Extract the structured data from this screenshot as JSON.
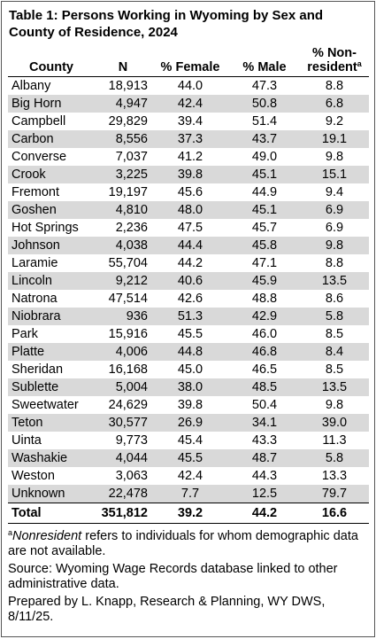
{
  "title": "Table 1: Persons Working in Wyoming by Sex and County of Residence, 2024",
  "table": {
    "header": [
      "County",
      "N",
      "% Female",
      "% Male",
      "% Non-resident"
    ],
    "header_marker": "a",
    "rows": [
      [
        "Albany",
        "18,913",
        "44.0",
        "47.3",
        "8.8"
      ],
      [
        "Big Horn",
        "4,947",
        "42.4",
        "50.8",
        "6.8"
      ],
      [
        "Campbell",
        "29,829",
        "39.4",
        "51.4",
        "9.2"
      ],
      [
        "Carbon",
        "8,556",
        "37.3",
        "43.7",
        "19.1"
      ],
      [
        "Converse",
        "7,037",
        "41.2",
        "49.0",
        "9.8"
      ],
      [
        "Crook",
        "3,225",
        "39.8",
        "45.1",
        "15.1"
      ],
      [
        "Fremont",
        "19,197",
        "45.6",
        "44.9",
        "9.4"
      ],
      [
        "Goshen",
        "4,810",
        "48.0",
        "45.1",
        "6.9"
      ],
      [
        "Hot Springs",
        "2,236",
        "47.5",
        "45.7",
        "6.9"
      ],
      [
        "Johnson",
        "4,038",
        "44.4",
        "45.8",
        "9.8"
      ],
      [
        "Laramie",
        "55,704",
        "44.2",
        "47.1",
        "8.8"
      ],
      [
        "Lincoln",
        "9,212",
        "40.6",
        "45.9",
        "13.5"
      ],
      [
        "Natrona",
        "47,514",
        "42.6",
        "48.8",
        "8.6"
      ],
      [
        "Niobrara",
        "936",
        "51.3",
        "42.9",
        "5.8"
      ],
      [
        "Park",
        "15,916",
        "45.5",
        "46.0",
        "8.5"
      ],
      [
        "Platte",
        "4,006",
        "44.8",
        "46.8",
        "8.4"
      ],
      [
        "Sheridan",
        "16,168",
        "45.0",
        "46.5",
        "8.5"
      ],
      [
        "Sublette",
        "5,004",
        "38.0",
        "48.5",
        "13.5"
      ],
      [
        "Sweetwater",
        "24,629",
        "39.8",
        "50.4",
        "9.8"
      ],
      [
        "Teton",
        "30,577",
        "26.9",
        "34.1",
        "39.0"
      ],
      [
        "Uinta",
        "9,773",
        "45.4",
        "43.3",
        "11.3"
      ],
      [
        "Washakie",
        "4,044",
        "45.5",
        "48.7",
        "5.8"
      ],
      [
        "Weston",
        "3,063",
        "42.4",
        "44.3",
        "13.3"
      ],
      [
        "Unknown",
        "22,478",
        "7.7",
        "12.5",
        "79.7"
      ]
    ],
    "total": [
      "Total",
      "351,812",
      "39.2",
      "44.2",
      "16.6"
    ]
  },
  "footnotes": {
    "marker": "a",
    "term": "Nonresident",
    "text": "refers to individuals for whom demographic data are not available.",
    "source": "Source: Wyoming Wage Records database linked to other administrative data.",
    "prepared": "Prepared by L. Knapp, Research & Planning, WY DWS, 8/11/25."
  }
}
